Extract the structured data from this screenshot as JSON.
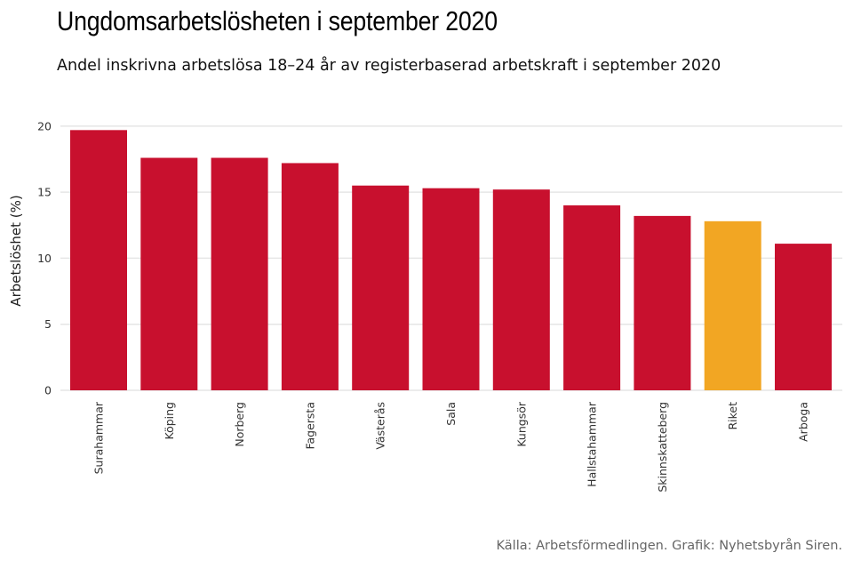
{
  "title": "Ungdomsarbetslösheten i september 2020",
  "subtitle": "Andel inskrivna arbetslösa 18–24 år av registerbaserad arbetskraft i september 2020",
  "caption": "Källa: Arbetsförmedlingen. Grafik: Nyhetsbyrån Siren.",
  "colors": {
    "bar": "#c8102e",
    "highlight": "#f2a623",
    "grid": "#e6e6e6",
    "axis_text": "#333333"
  },
  "chart_data": {
    "type": "bar",
    "ylabel": "Arbetslöshet (%)",
    "xlabel": "",
    "ylim": [
      0,
      21
    ],
    "yticks": [
      0,
      5,
      10,
      15,
      20
    ],
    "grid": true,
    "categories": [
      "Surahammar",
      "Köping",
      "Norberg",
      "Fagersta",
      "Västerås",
      "Sala",
      "Kungsör",
      "Hallstahammar",
      "Skinnskatteberg",
      "Riket",
      "Arboga"
    ],
    "values": [
      19.7,
      17.6,
      17.6,
      17.2,
      15.5,
      15.3,
      15.2,
      14.0,
      13.2,
      12.8,
      11.1
    ],
    "highlight": "Riket"
  }
}
